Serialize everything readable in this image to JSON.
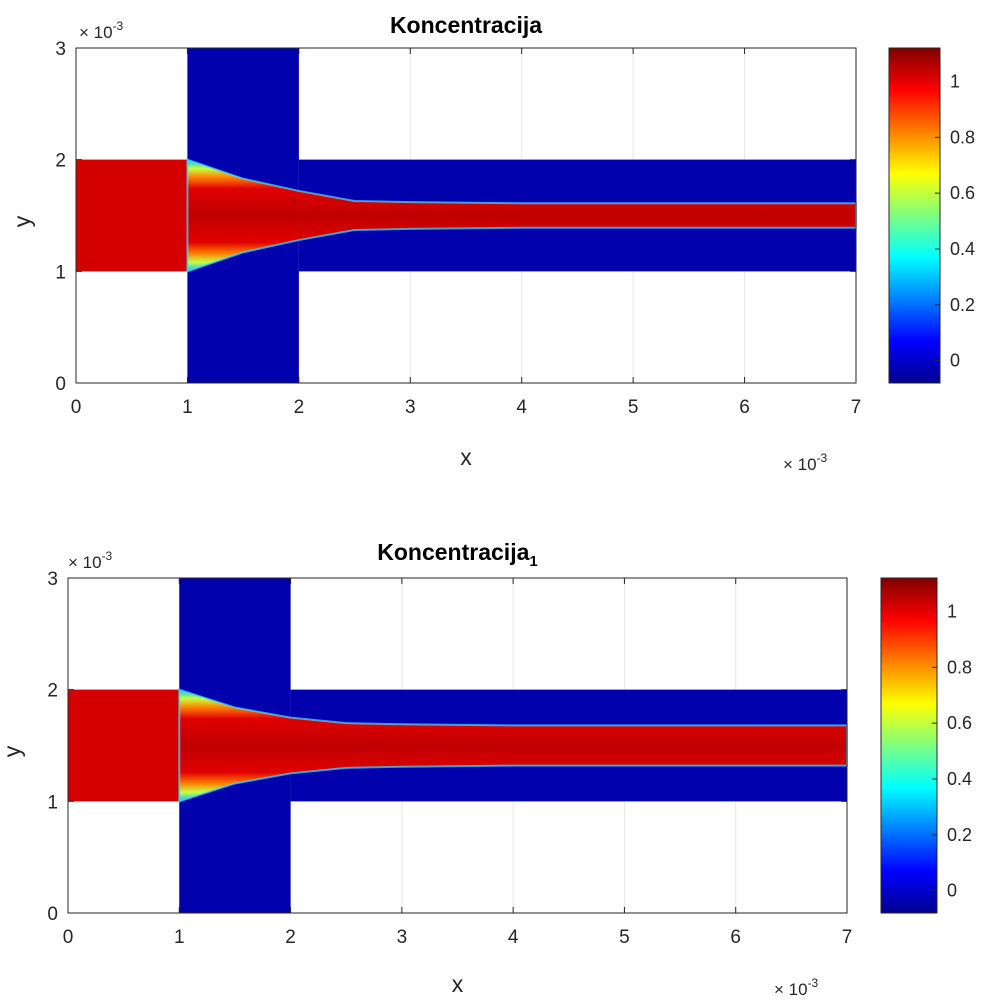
{
  "colors": {
    "low": "#0000ad",
    "high": "#d40000",
    "axis": "#262626",
    "grid": "#e6e6e6",
    "colormap": "jet"
  },
  "chart_data": [
    {
      "type": "heatmap",
      "title": "Koncentracija",
      "title_subscript": "",
      "xlabel": "x",
      "ylabel": "y",
      "x_multiplier": "× 10",
      "x_multiplier_exp": "-3",
      "y_multiplier": "× 10",
      "y_multiplier_exp": "-3",
      "xlim": [
        0,
        7
      ],
      "ylim": [
        0,
        3
      ],
      "xticks": [
        "0",
        "1",
        "2",
        "3",
        "4",
        "5",
        "6",
        "7"
      ],
      "yticks": [
        "0",
        "1",
        "2",
        "3"
      ],
      "grid": true,
      "colorbar": {
        "range": [
          -0.08,
          1.12
        ],
        "ticks": [
          "0",
          "0.2",
          "0.4",
          "0.6",
          "0.8",
          "1"
        ],
        "tick_values": [
          0,
          0.2,
          0.4,
          0.6,
          0.8,
          1
        ],
        "colormap": "jet"
      },
      "regions": [
        {
          "label": "inlet",
          "value": 1,
          "x": [
            0,
            1
          ],
          "y": [
            1,
            2
          ]
        },
        {
          "label": "vertical-channel",
          "value": 0,
          "x": [
            1,
            2
          ],
          "y": [
            0,
            3
          ]
        },
        {
          "label": "outlet-channel",
          "value": 0,
          "x": [
            2,
            7
          ],
          "y": [
            1,
            2
          ]
        }
      ],
      "jet_profile": {
        "x": [
          1,
          1.5,
          2,
          2.5,
          3,
          4,
          5,
          6,
          7
        ],
        "half_width": [
          0.5,
          0.33,
          0.22,
          0.13,
          0.12,
          0.11,
          0.11,
          0.11,
          0.11
        ],
        "center": 1.5
      }
    },
    {
      "type": "heatmap",
      "title": "Koncentracija",
      "title_subscript": "1",
      "xlabel": "x",
      "ylabel": "y",
      "x_multiplier": "× 10",
      "x_multiplier_exp": "-3",
      "y_multiplier": "× 10",
      "y_multiplier_exp": "-3",
      "xlim": [
        0,
        7
      ],
      "ylim": [
        0,
        3
      ],
      "xticks": [
        "0",
        "1",
        "2",
        "3",
        "4",
        "5",
        "6",
        "7"
      ],
      "yticks": [
        "0",
        "1",
        "2",
        "3"
      ],
      "grid": true,
      "colorbar": {
        "range": [
          -0.08,
          1.12
        ],
        "ticks": [
          "0",
          "0.2",
          "0.4",
          "0.6",
          "0.8",
          "1"
        ],
        "tick_values": [
          0,
          0.2,
          0.4,
          0.6,
          0.8,
          1
        ],
        "colormap": "jet"
      },
      "regions": [
        {
          "label": "inlet",
          "value": 1,
          "x": [
            0,
            1
          ],
          "y": [
            1,
            2
          ]
        },
        {
          "label": "vertical-channel",
          "value": 0,
          "x": [
            1,
            2
          ],
          "y": [
            0,
            3
          ]
        },
        {
          "label": "outlet-channel",
          "value": 0,
          "x": [
            2,
            7
          ],
          "y": [
            1,
            2
          ]
        }
      ],
      "jet_profile": {
        "x": [
          1,
          1.5,
          2,
          2.5,
          3,
          4,
          5,
          6,
          7
        ],
        "half_width": [
          0.5,
          0.34,
          0.25,
          0.2,
          0.19,
          0.18,
          0.18,
          0.18,
          0.18
        ],
        "center": 1.5
      }
    }
  ]
}
